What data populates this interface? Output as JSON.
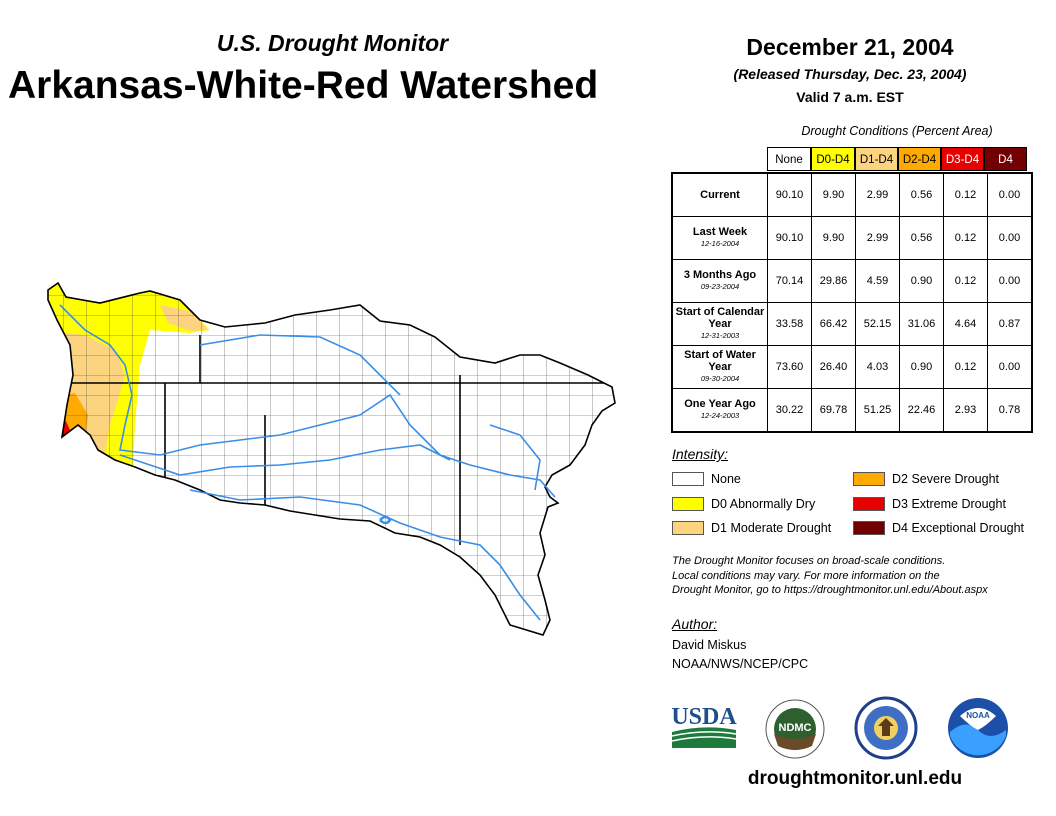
{
  "header": {
    "monitor_title": "U.S. Drought Monitor",
    "region_title": "Arkansas-White-Red Watershed",
    "date": "December 21, 2004",
    "released": "(Released Thursday, Dec. 23, 2004)",
    "valid": "Valid 7 a.m. EST"
  },
  "table": {
    "caption": "Drought Conditions (Percent Area)",
    "columns": [
      "None",
      "D0-D4",
      "D1-D4",
      "D2-D4",
      "D3-D4",
      "D4"
    ],
    "rows": [
      {
        "label": "Current",
        "sub": "",
        "values": [
          "90.10",
          "9.90",
          "2.99",
          "0.56",
          "0.12",
          "0.00"
        ]
      },
      {
        "label": "Last Week",
        "sub": "12-16-2004",
        "values": [
          "90.10",
          "9.90",
          "2.99",
          "0.56",
          "0.12",
          "0.00"
        ]
      },
      {
        "label": "3 Months Ago",
        "sub": "09-23-2004",
        "values": [
          "70.14",
          "29.86",
          "4.59",
          "0.90",
          "0.12",
          "0.00"
        ]
      },
      {
        "label": "Start of Calendar Year",
        "sub": "12-31-2003",
        "values": [
          "33.58",
          "66.42",
          "52.15",
          "31.06",
          "4.64",
          "0.87"
        ]
      },
      {
        "label": "Start of Water Year",
        "sub": "09-30-2004",
        "values": [
          "73.60",
          "26.40",
          "4.03",
          "0.90",
          "0.12",
          "0.00"
        ]
      },
      {
        "label": "One Year Ago",
        "sub": "12-24-2003",
        "values": [
          "30.22",
          "69.78",
          "51.25",
          "22.46",
          "2.93",
          "0.78"
        ]
      }
    ]
  },
  "legend": {
    "title": "Intensity:",
    "items": [
      {
        "label": "None",
        "color": "#ffffff"
      },
      {
        "label": "D0 Abnormally Dry",
        "color": "#ffff00"
      },
      {
        "label": "D1 Moderate Drought",
        "color": "#fcd37f"
      },
      {
        "label": "D2 Severe Drought",
        "color": "#ffaa00"
      },
      {
        "label": "D3 Extreme Drought",
        "color": "#e60000"
      },
      {
        "label": "D4 Exceptional Drought",
        "color": "#730000"
      }
    ]
  },
  "disclaimer": {
    "line1": "The Drought Monitor focuses on broad-scale conditions.",
    "line2": "Local conditions may vary. For more information on the",
    "line3": "Drought Monitor, go to https://droughtmonitor.unl.edu/About.aspx"
  },
  "author": {
    "title": "Author:",
    "name": "David Miskus",
    "org": "NOAA/NWS/NCEP/CPC"
  },
  "logos": {
    "usda": "USDA",
    "ndmc": "NDMC",
    "noaa": "NOAA"
  },
  "website": "droughtmonitor.unl.edu",
  "colors": {
    "none": "#ffffff",
    "d0": "#ffff00",
    "d1": "#fcd37f",
    "d2": "#ffaa00",
    "d3": "#e60000",
    "d4": "#730000",
    "river": "#3a8ee6"
  }
}
